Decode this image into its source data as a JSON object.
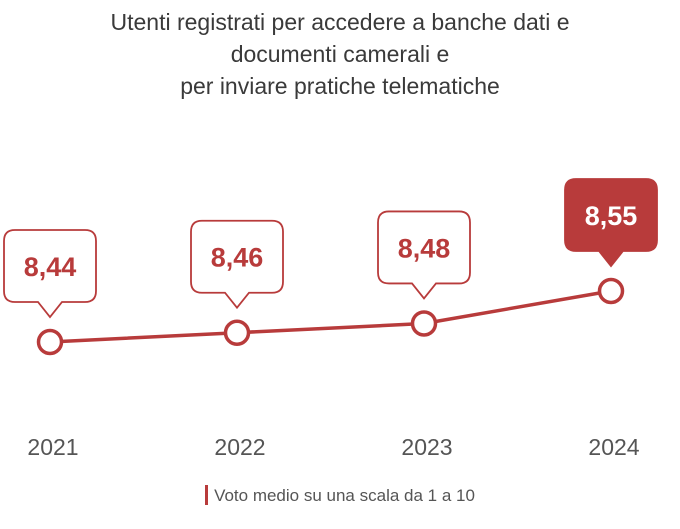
{
  "title_lines": [
    "Utenti registrati per accedere a banche dati e",
    "documenti camerali e",
    "per inviare pratiche telematiche"
  ],
  "legend": {
    "label": "Voto medio su una scala da 1 a 10"
  },
  "colors": {
    "accent": "#b83b3b",
    "text": "#3a3a3a",
    "muted": "#555555"
  },
  "chart_data": {
    "type": "line",
    "title": "Utenti registrati per accedere a banche dati e documenti camerali e per inviare pratiche telematiche",
    "categories": [
      "2021",
      "2022",
      "2023",
      "2024"
    ],
    "series": [
      {
        "name": "Voto medio su una scala da 1 a 10",
        "values": [
          8.44,
          8.46,
          8.48,
          8.55
        ],
        "labels": [
          "8,44",
          "8,46",
          "8,48",
          "8,55"
        ]
      }
    ],
    "highlighted_index": 3,
    "grid": false,
    "legend_position": "bottom"
  }
}
